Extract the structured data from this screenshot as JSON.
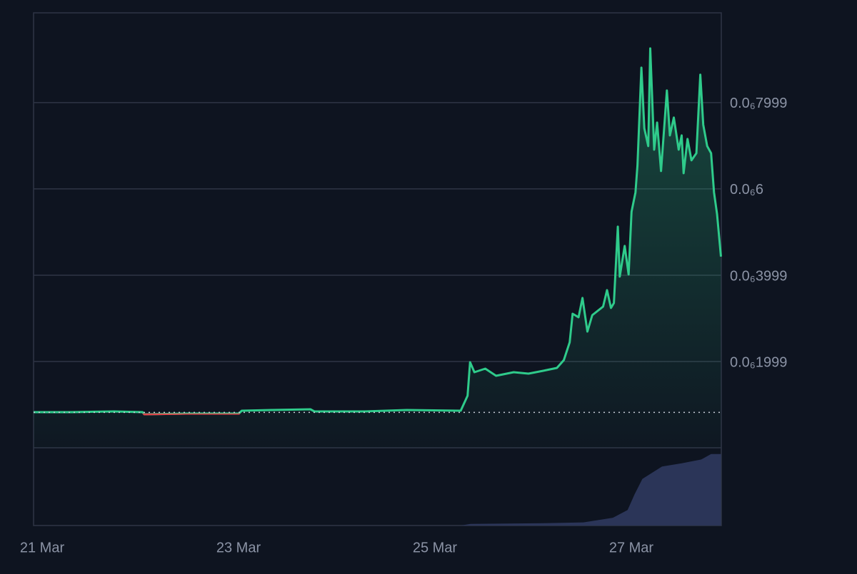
{
  "chart_data": {
    "type": "line",
    "background": "#0e1420",
    "grid": true,
    "xlim": [
      0,
      7.004
    ],
    "xticks": [
      {
        "value": 0,
        "label": "21 Mar"
      },
      {
        "value": 2,
        "label": "23 Mar"
      },
      {
        "value": 4,
        "label": "25 Mar"
      },
      {
        "value": 6,
        "label": "27 Mar"
      }
    ],
    "ylim": [
      0,
      1.008e-06
    ],
    "yticks": [
      {
        "value": 1.999e-07,
        "label": "0.0₆1999"
      },
      {
        "value": 3.999e-07,
        "label": "0.0₆3999"
      },
      {
        "value": 6e-07,
        "label": "0.0₆6"
      },
      {
        "value": 7.999e-07,
        "label": "0.0₆7999"
      }
    ],
    "y2lim": [
      0,
      100
    ],
    "baseline": 8.2e-08,
    "below_color": "#e0474c",
    "series": [
      {
        "color": "#2fcb8b",
        "x": [
          0,
          0.39,
          0.82,
          1.11,
          1.127,
          1.55,
          2.09,
          2.12,
          2.42,
          2.82,
          2.86,
          3.37,
          3.8,
          4.35,
          4.42,
          4.445,
          4.49,
          4.6,
          4.71,
          4.89,
          5.04,
          5.19,
          5.33,
          5.4,
          5.46,
          5.49,
          5.55,
          5.59,
          5.64,
          5.69,
          5.8,
          5.84,
          5.88,
          5.91,
          5.95,
          5.97,
          6.02,
          6.06,
          6.09,
          6.13,
          6.15,
          6.19,
          6.22,
          6.26,
          6.28,
          6.32,
          6.35,
          6.39,
          6.45,
          6.48,
          6.52,
          6.57,
          6.6,
          6.62,
          6.66,
          6.7,
          6.75,
          6.79,
          6.82,
          6.86,
          6.9,
          6.93,
          6.96,
          7.0
        ],
        "values": [
          8.26e-08,
          8.26e-08,
          8.43e-08,
          8.26e-08,
          7.77e-08,
          7.93e-08,
          7.93e-08,
          8.6e-08,
          8.76e-08,
          8.93e-08,
          8.43e-08,
          8.43e-08,
          8.76e-08,
          8.6e-08,
          1.207e-07,
          1.983e-07,
          1.752e-07,
          1.835e-07,
          1.669e-07,
          1.752e-07,
          1.719e-07,
          1.785e-07,
          1.851e-07,
          2.033e-07,
          2.446e-07,
          3.107e-07,
          3.025e-07,
          3.471e-07,
          2.694e-07,
          3.074e-07,
          3.273e-07,
          3.653e-07,
          3.24e-07,
          3.355e-07,
          5.124e-07,
          3.967e-07,
          4.678e-07,
          4.017e-07,
          5.471e-07,
          5.917e-07,
          6.545e-07,
          8.81e-07,
          7.405e-07,
          6.992e-07,
          9.256e-07,
          6.909e-07,
          7.537e-07,
          6.413e-07,
          8.281e-07,
          7.24e-07,
          7.653e-07,
          6.909e-07,
          7.24e-07,
          6.364e-07,
          7.157e-07,
          6.661e-07,
          6.826e-07,
          8.645e-07,
          7.488e-07,
          6.992e-07,
          6.826e-07,
          5.917e-07,
          5.421e-07,
          4.43e-07
        ]
      },
      {
        "color": "#2b3558",
        "axis": "y2",
        "type": "area",
        "x": [
          0,
          4.35,
          4.45,
          5.2,
          5.6,
          5.9,
          6.05,
          6.12,
          6.2,
          6.4,
          6.6,
          6.8,
          6.9,
          7.0
        ],
        "values": [
          0,
          0,
          2,
          3,
          4,
          10,
          20,
          40,
          60,
          76,
          80,
          85,
          92,
          92
        ]
      }
    ]
  }
}
